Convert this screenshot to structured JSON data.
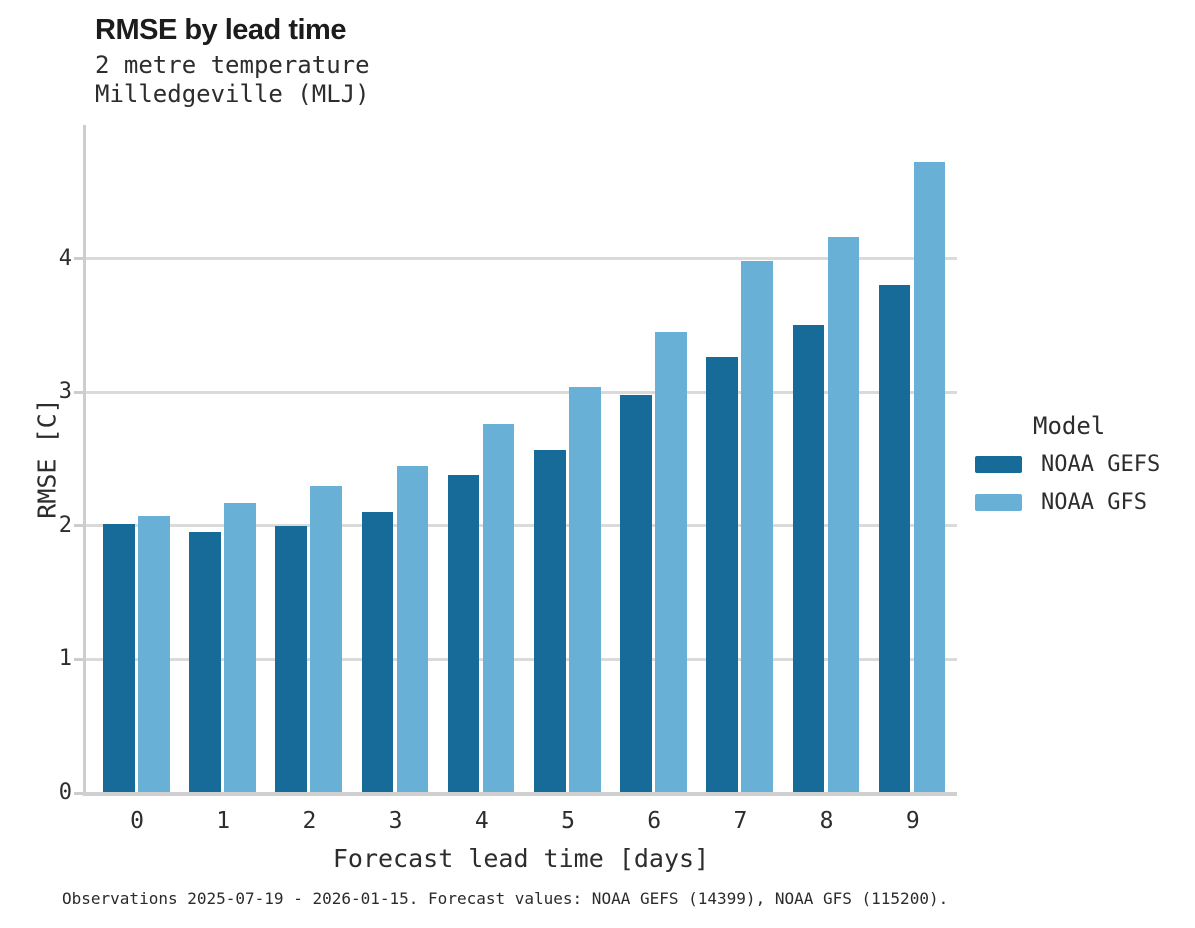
{
  "footnote": "Observations 2025-07-19 - 2026-01-15. Forecast values: NOAA GEFS (14399), NOAA GFS (115200).",
  "colors": {
    "gefs_dark_blue": "#176b99",
    "gfs_light_blue": "#69b0d6",
    "gridline_gray": "#dadada",
    "spine_gray": "#cdcdcd",
    "text_dark": "#2d2d2d"
  },
  "chart_data": {
    "type": "bar",
    "title": "RMSE by lead time",
    "subtitle_lines": [
      "2 metre temperature",
      "Milledgeville (MLJ)"
    ],
    "xlabel": "Forecast lead time [days]",
    "ylabel": "RMSE [C]",
    "categories": [
      "0",
      "1",
      "2",
      "3",
      "4",
      "5",
      "6",
      "7",
      "8",
      "9"
    ],
    "series": [
      {
        "name": "NOAA GEFS",
        "color": "#176b99",
        "values": [
          2.01,
          1.95,
          2.0,
          2.1,
          2.38,
          2.57,
          2.98,
          3.26,
          3.5,
          3.8
        ]
      },
      {
        "name": "NOAA GFS",
        "color": "#69b0d6",
        "values": [
          2.07,
          2.17,
          2.3,
          2.45,
          2.76,
          3.04,
          3.45,
          3.98,
          4.16,
          4.72
        ]
      }
    ],
    "ylim": [
      0,
      5
    ],
    "yticks": [
      0,
      1,
      2,
      3,
      4
    ],
    "grid": true,
    "legend_title": "Model",
    "legend_position": "right"
  }
}
